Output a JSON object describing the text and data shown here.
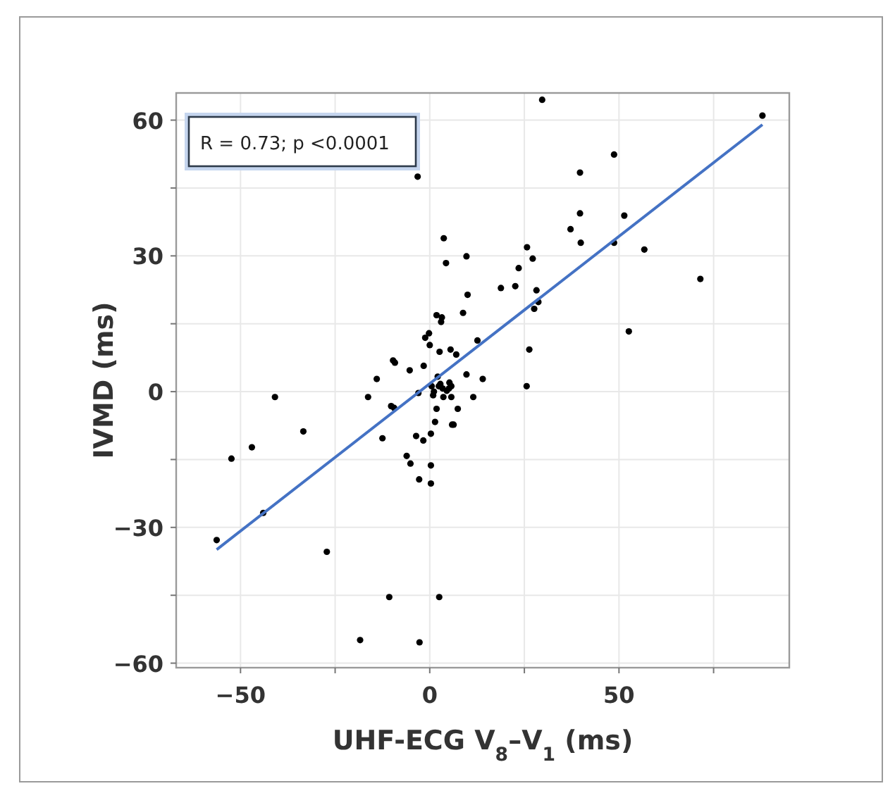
{
  "chart_data": {
    "type": "scatter",
    "xlabel": "UHF-ECG V$_{8}$–V$_{1}$ (ms)",
    "ylabel": "IVMD (ms)",
    "annotations": [
      "R = 0.73; p <0.0001"
    ],
    "xlim": [
      -67,
      95
    ],
    "ylim": [
      -61,
      66
    ],
    "xticks": [
      -50,
      {
        "value": -25,
        "label": null
      },
      0,
      {
        "value": 25,
        "label": null
      },
      50,
      {
        "value": 75,
        "label": null
      }
    ],
    "yticks": [
      -60,
      {
        "value": -45,
        "label": null
      },
      -30,
      {
        "value": -15,
        "label": null
      },
      0,
      {
        "value": 15,
        "label": null
      },
      30,
      {
        "value": 45,
        "label": null
      },
      60
    ],
    "grid": true,
    "series": [
      {
        "marker": "circle",
        "color": "#000000",
        "x": [
          -3.2,
          3.7,
          4.3,
          9.7,
          10.0,
          8.8,
          1.8,
          3.2,
          3.0,
          12.6,
          -0.2,
          -1.2,
          0.0,
          2.6,
          5.5,
          7.0,
          -9.7,
          -9.2,
          -5.3,
          -1.6,
          -14.0,
          9.7,
          14.0,
          2.1,
          0.5,
          2.8,
          5.2,
          3.4,
          5.1,
          1.1,
          29.7,
          87.9,
          48.7,
          39.7,
          39.7,
          51.4,
          37.2,
          39.9,
          48.7,
          56.7,
          25.7,
          27.2,
          23.5,
          22.6,
          28.2,
          28.7,
          27.6,
          71.5,
          52.6,
          26.3,
          25.6,
          18.8,
          -40.9,
          -52.4,
          -47.0,
          -33.4,
          -56.3,
          -44.0,
          -27.2,
          -16.3,
          -10.2,
          -9.4,
          -12.5,
          -3.6,
          -1.7,
          0.3,
          -6.1,
          -5.1,
          0.3,
          -2.8,
          0.3,
          1.4,
          1.8,
          5.9,
          6.3,
          7.4,
          11.5,
          0.9,
          3.6,
          5.7,
          2.4,
          4.5,
          5.7,
          -3.0,
          -10.7,
          2.5,
          -18.4,
          -2.7
        ],
        "values": [
          47.5,
          33.9,
          28.4,
          29.9,
          21.4,
          17.4,
          16.9,
          16.4,
          15.4,
          11.3,
          12.9,
          11.9,
          10.3,
          8.8,
          9.3,
          8.2,
          6.9,
          6.4,
          4.7,
          5.7,
          2.8,
          3.8,
          2.8,
          3.3,
          1.2,
          1.7,
          2.0,
          0.7,
          0.7,
          0.0,
          64.5,
          61.0,
          52.4,
          48.4,
          39.4,
          38.9,
          35.9,
          32.9,
          32.9,
          31.4,
          31.9,
          29.4,
          27.3,
          23.3,
          22.4,
          19.8,
          18.3,
          24.9,
          13.3,
          9.3,
          1.2,
          22.9,
          -1.2,
          -14.8,
          -12.3,
          -8.8,
          -32.8,
          -26.8,
          -35.4,
          -1.2,
          -3.2,
          -3.6,
          -10.3,
          -9.8,
          -10.8,
          -9.3,
          -14.2,
          -15.9,
          -16.3,
          -19.4,
          -20.3,
          -6.7,
          -3.8,
          -7.3,
          -7.3,
          -3.8,
          -1.2,
          -0.8,
          -1.2,
          -1.2,
          1.2,
          0.2,
          1.2,
          -0.3,
          -45.4,
          -45.4,
          -54.9,
          -55.4
        ]
      },
      {
        "type": "line",
        "color": "#4472c4",
        "x": [
          -56.3,
          87.9
        ],
        "values": [
          -34.9,
          59.0
        ]
      }
    ]
  }
}
